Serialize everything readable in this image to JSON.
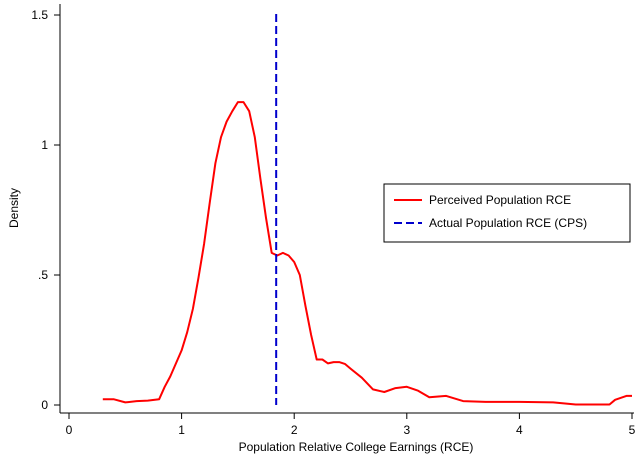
{
  "chart_data": {
    "type": "line",
    "title": "",
    "xlabel": "Population Relative College Earnings (RCE)",
    "ylabel": "Density",
    "xlim": [
      0,
      5
    ],
    "ylim": [
      0,
      1.5
    ],
    "x_ticks": [
      {
        "value": 0,
        "label": "0"
      },
      {
        "value": 1,
        "label": "1"
      },
      {
        "value": 2,
        "label": "2"
      },
      {
        "value": 3,
        "label": "3"
      },
      {
        "value": 4,
        "label": "4"
      },
      {
        "value": 5,
        "label": "5"
      }
    ],
    "y_ticks": [
      {
        "value": 0,
        "label": "0"
      },
      {
        "value": 0.5,
        "label": ".5"
      },
      {
        "value": 1,
        "label": "1"
      },
      {
        "value": 1.5,
        "label": "1.5"
      }
    ],
    "grid": false,
    "legend_position": "right",
    "series": [
      {
        "name": "Perceived Population RCE",
        "kind": "line",
        "color": "#ff0000",
        "dash": "solid",
        "points": [
          [
            0.3,
            0.022
          ],
          [
            0.4,
            0.022
          ],
          [
            0.5,
            0.01
          ],
          [
            0.6,
            0.015
          ],
          [
            0.7,
            0.017
          ],
          [
            0.8,
            0.022
          ],
          [
            0.85,
            0.07
          ],
          [
            0.9,
            0.11
          ],
          [
            1.0,
            0.21
          ],
          [
            1.05,
            0.28
          ],
          [
            1.1,
            0.37
          ],
          [
            1.15,
            0.49
          ],
          [
            1.2,
            0.62
          ],
          [
            1.25,
            0.78
          ],
          [
            1.3,
            0.93
          ],
          [
            1.35,
            1.03
          ],
          [
            1.4,
            1.09
          ],
          [
            1.45,
            1.13
          ],
          [
            1.5,
            1.165
          ],
          [
            1.55,
            1.165
          ],
          [
            1.6,
            1.13
          ],
          [
            1.65,
            1.03
          ],
          [
            1.7,
            0.87
          ],
          [
            1.75,
            0.72
          ],
          [
            1.8,
            0.585
          ],
          [
            1.85,
            0.575
          ],
          [
            1.9,
            0.585
          ],
          [
            1.95,
            0.575
          ],
          [
            2.0,
            0.55
          ],
          [
            2.05,
            0.5
          ],
          [
            2.1,
            0.38
          ],
          [
            2.15,
            0.27
          ],
          [
            2.2,
            0.175
          ],
          [
            2.25,
            0.175
          ],
          [
            2.3,
            0.16
          ],
          [
            2.35,
            0.165
          ],
          [
            2.4,
            0.165
          ],
          [
            2.45,
            0.158
          ],
          [
            2.5,
            0.14
          ],
          [
            2.6,
            0.105
          ],
          [
            2.7,
            0.06
          ],
          [
            2.8,
            0.05
          ],
          [
            2.9,
            0.065
          ],
          [
            3.0,
            0.07
          ],
          [
            3.1,
            0.055
          ],
          [
            3.2,
            0.03
          ],
          [
            3.35,
            0.035
          ],
          [
            3.5,
            0.015
          ],
          [
            3.7,
            0.012
          ],
          [
            4.0,
            0.012
          ],
          [
            4.3,
            0.01
          ],
          [
            4.5,
            0.002
          ],
          [
            4.8,
            0.002
          ],
          [
            4.85,
            0.02
          ],
          [
            4.95,
            0.035
          ],
          [
            5.0,
            0.035
          ]
        ]
      },
      {
        "name": "Actual Population RCE (CPS)",
        "kind": "vline",
        "color": "#0000cc",
        "dash": "dashed",
        "x": 1.84
      }
    ]
  }
}
